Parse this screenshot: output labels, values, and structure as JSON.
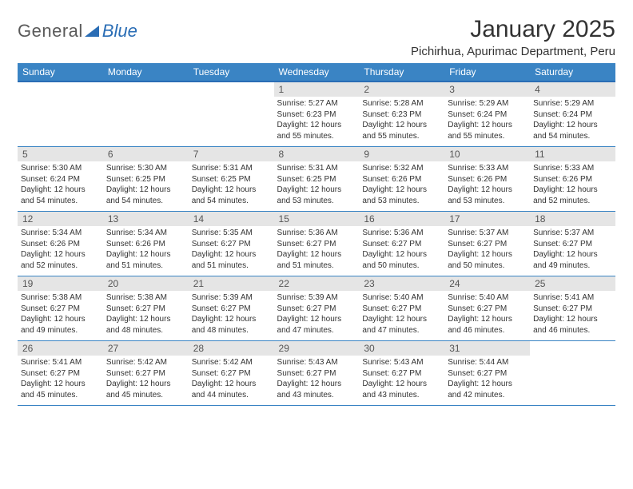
{
  "brand": {
    "name1": "General",
    "name2": "Blue"
  },
  "title": "January 2025",
  "location": "Pichirhua, Apurimac Department, Peru",
  "colors": {
    "header_bg": "#3a84c4",
    "header_border": "#2a6db5",
    "daynum_bg": "#e5e5e5",
    "text": "#333333",
    "logo_blue": "#2a6db5",
    "logo_gray": "#5a5a5a",
    "page_bg": "#ffffff"
  },
  "typography": {
    "title_fontsize": 30,
    "location_fontsize": 15,
    "header_fontsize": 12,
    "daynum_fontsize": 12,
    "cell_fontsize": 10
  },
  "day_names": [
    "Sunday",
    "Monday",
    "Tuesday",
    "Wednesday",
    "Thursday",
    "Friday",
    "Saturday"
  ],
  "weeks": [
    [
      {
        "n": "",
        "sr": "",
        "ss": "",
        "dl": ""
      },
      {
        "n": "",
        "sr": "",
        "ss": "",
        "dl": ""
      },
      {
        "n": "",
        "sr": "",
        "ss": "",
        "dl": ""
      },
      {
        "n": "1",
        "sr": "Sunrise: 5:27 AM",
        "ss": "Sunset: 6:23 PM",
        "dl": "Daylight: 12 hours and 55 minutes."
      },
      {
        "n": "2",
        "sr": "Sunrise: 5:28 AM",
        "ss": "Sunset: 6:23 PM",
        "dl": "Daylight: 12 hours and 55 minutes."
      },
      {
        "n": "3",
        "sr": "Sunrise: 5:29 AM",
        "ss": "Sunset: 6:24 PM",
        "dl": "Daylight: 12 hours and 55 minutes."
      },
      {
        "n": "4",
        "sr": "Sunrise: 5:29 AM",
        "ss": "Sunset: 6:24 PM",
        "dl": "Daylight: 12 hours and 54 minutes."
      }
    ],
    [
      {
        "n": "5",
        "sr": "Sunrise: 5:30 AM",
        "ss": "Sunset: 6:24 PM",
        "dl": "Daylight: 12 hours and 54 minutes."
      },
      {
        "n": "6",
        "sr": "Sunrise: 5:30 AM",
        "ss": "Sunset: 6:25 PM",
        "dl": "Daylight: 12 hours and 54 minutes."
      },
      {
        "n": "7",
        "sr": "Sunrise: 5:31 AM",
        "ss": "Sunset: 6:25 PM",
        "dl": "Daylight: 12 hours and 54 minutes."
      },
      {
        "n": "8",
        "sr": "Sunrise: 5:31 AM",
        "ss": "Sunset: 6:25 PM",
        "dl": "Daylight: 12 hours and 53 minutes."
      },
      {
        "n": "9",
        "sr": "Sunrise: 5:32 AM",
        "ss": "Sunset: 6:26 PM",
        "dl": "Daylight: 12 hours and 53 minutes."
      },
      {
        "n": "10",
        "sr": "Sunrise: 5:33 AM",
        "ss": "Sunset: 6:26 PM",
        "dl": "Daylight: 12 hours and 53 minutes."
      },
      {
        "n": "11",
        "sr": "Sunrise: 5:33 AM",
        "ss": "Sunset: 6:26 PM",
        "dl": "Daylight: 12 hours and 52 minutes."
      }
    ],
    [
      {
        "n": "12",
        "sr": "Sunrise: 5:34 AM",
        "ss": "Sunset: 6:26 PM",
        "dl": "Daylight: 12 hours and 52 minutes."
      },
      {
        "n": "13",
        "sr": "Sunrise: 5:34 AM",
        "ss": "Sunset: 6:26 PM",
        "dl": "Daylight: 12 hours and 51 minutes."
      },
      {
        "n": "14",
        "sr": "Sunrise: 5:35 AM",
        "ss": "Sunset: 6:27 PM",
        "dl": "Daylight: 12 hours and 51 minutes."
      },
      {
        "n": "15",
        "sr": "Sunrise: 5:36 AM",
        "ss": "Sunset: 6:27 PM",
        "dl": "Daylight: 12 hours and 51 minutes."
      },
      {
        "n": "16",
        "sr": "Sunrise: 5:36 AM",
        "ss": "Sunset: 6:27 PM",
        "dl": "Daylight: 12 hours and 50 minutes."
      },
      {
        "n": "17",
        "sr": "Sunrise: 5:37 AM",
        "ss": "Sunset: 6:27 PM",
        "dl": "Daylight: 12 hours and 50 minutes."
      },
      {
        "n": "18",
        "sr": "Sunrise: 5:37 AM",
        "ss": "Sunset: 6:27 PM",
        "dl": "Daylight: 12 hours and 49 minutes."
      }
    ],
    [
      {
        "n": "19",
        "sr": "Sunrise: 5:38 AM",
        "ss": "Sunset: 6:27 PM",
        "dl": "Daylight: 12 hours and 49 minutes."
      },
      {
        "n": "20",
        "sr": "Sunrise: 5:38 AM",
        "ss": "Sunset: 6:27 PM",
        "dl": "Daylight: 12 hours and 48 minutes."
      },
      {
        "n": "21",
        "sr": "Sunrise: 5:39 AM",
        "ss": "Sunset: 6:27 PM",
        "dl": "Daylight: 12 hours and 48 minutes."
      },
      {
        "n": "22",
        "sr": "Sunrise: 5:39 AM",
        "ss": "Sunset: 6:27 PM",
        "dl": "Daylight: 12 hours and 47 minutes."
      },
      {
        "n": "23",
        "sr": "Sunrise: 5:40 AM",
        "ss": "Sunset: 6:27 PM",
        "dl": "Daylight: 12 hours and 47 minutes."
      },
      {
        "n": "24",
        "sr": "Sunrise: 5:40 AM",
        "ss": "Sunset: 6:27 PM",
        "dl": "Daylight: 12 hours and 46 minutes."
      },
      {
        "n": "25",
        "sr": "Sunrise: 5:41 AM",
        "ss": "Sunset: 6:27 PM",
        "dl": "Daylight: 12 hours and 46 minutes."
      }
    ],
    [
      {
        "n": "26",
        "sr": "Sunrise: 5:41 AM",
        "ss": "Sunset: 6:27 PM",
        "dl": "Daylight: 12 hours and 45 minutes."
      },
      {
        "n": "27",
        "sr": "Sunrise: 5:42 AM",
        "ss": "Sunset: 6:27 PM",
        "dl": "Daylight: 12 hours and 45 minutes."
      },
      {
        "n": "28",
        "sr": "Sunrise: 5:42 AM",
        "ss": "Sunset: 6:27 PM",
        "dl": "Daylight: 12 hours and 44 minutes."
      },
      {
        "n": "29",
        "sr": "Sunrise: 5:43 AM",
        "ss": "Sunset: 6:27 PM",
        "dl": "Daylight: 12 hours and 43 minutes."
      },
      {
        "n": "30",
        "sr": "Sunrise: 5:43 AM",
        "ss": "Sunset: 6:27 PM",
        "dl": "Daylight: 12 hours and 43 minutes."
      },
      {
        "n": "31",
        "sr": "Sunrise: 5:44 AM",
        "ss": "Sunset: 6:27 PM",
        "dl": "Daylight: 12 hours and 42 minutes."
      },
      {
        "n": "",
        "sr": "",
        "ss": "",
        "dl": ""
      }
    ]
  ]
}
